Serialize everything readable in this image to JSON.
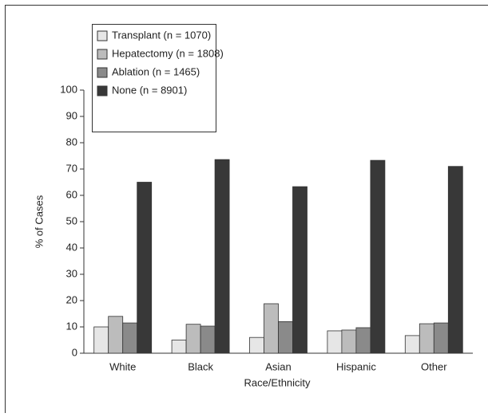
{
  "chart_data": {
    "type": "bar",
    "x_label": "Race/Ethnicity",
    "y_label": "% of Cases",
    "categories": [
      "White",
      "Black",
      "Asian",
      "Hispanic",
      "Other"
    ],
    "series": [
      {
        "name": "Transplant (n = 1070)",
        "color": "#e6e6e6",
        "values": [
          10,
          5,
          6,
          8.5,
          6.7
        ]
      },
      {
        "name": "Hepatectomy (n = 1808)",
        "color": "#bcbcbc",
        "values": [
          14,
          11,
          18.8,
          8.8,
          11.2
        ]
      },
      {
        "name": "Ablation (n = 1465)",
        "color": "#8a8a8a",
        "values": [
          11.5,
          10.3,
          12,
          9.7,
          11.5
        ]
      },
      {
        "name": "None (n = 8901)",
        "color": "#383838",
        "values": [
          65,
          73.6,
          63.3,
          73.3,
          71
        ]
      }
    ],
    "ylim": [
      0,
      100
    ],
    "yticks": [
      0,
      10,
      20,
      30,
      40,
      50,
      60,
      70,
      80,
      90,
      100
    ]
  }
}
